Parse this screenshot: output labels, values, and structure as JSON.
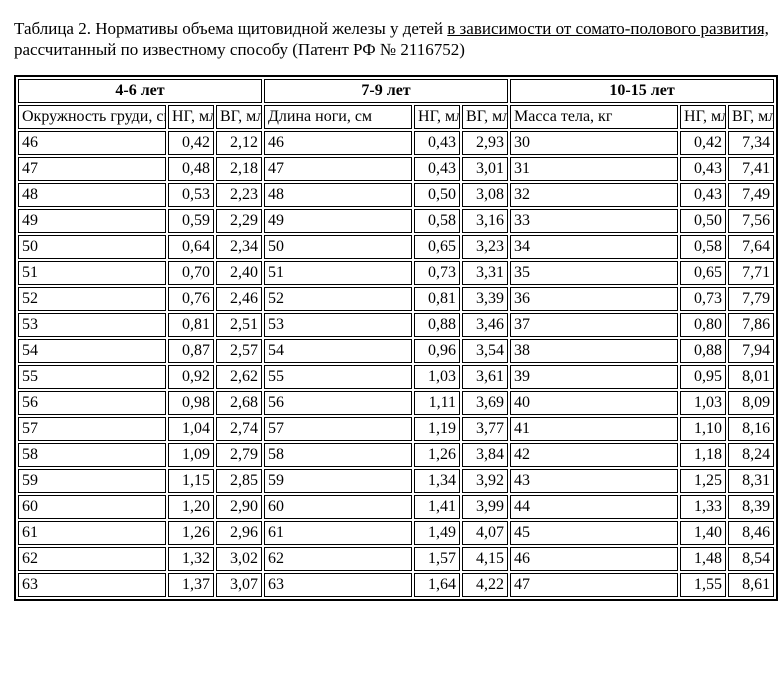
{
  "caption": {
    "prefix": "Таблица 2. Нормативы объема щитовидной железы у детей ",
    "underlined": "в зависимости от сомато-полового развития,",
    "suffix": "  рассчитанный по известному способу  (Патент  РФ  № 2116752)"
  },
  "table": {
    "type": "table",
    "background_color": "#ffffff",
    "border_color": "#000000",
    "text_color": "#000000",
    "font_family": "Times New Roman",
    "header_fontsize": 17,
    "body_fontsize": 16,
    "age_groups": [
      "4-6 лет",
      "7-9 лет",
      "10-15 лет"
    ],
    "column_headers": {
      "group1": {
        "param": "Окружность груди, см",
        "ng": "НГ, мл",
        "vg": "ВГ, мл"
      },
      "group2": {
        "param": "Длина ноги, см",
        "ng": "НГ, мл",
        "vg": "ВГ, мл"
      },
      "group3": {
        "param": "Масса тела, кг",
        "ng": "НГ, мл",
        "vg": "ВГ, мл"
      }
    },
    "rows": [
      {
        "g1": [
          "46",
          "0,42",
          "2,12"
        ],
        "g2": [
          "46",
          "0,43",
          "2,93"
        ],
        "g3": [
          "30",
          "0,42",
          "7,34"
        ]
      },
      {
        "g1": [
          "47",
          "0,48",
          "2,18"
        ],
        "g2": [
          "47",
          "0,43",
          "3,01"
        ],
        "g3": [
          "31",
          "0,43",
          "7,41"
        ]
      },
      {
        "g1": [
          "48",
          "0,53",
          "2,23"
        ],
        "g2": [
          "48",
          "0,50",
          "3,08"
        ],
        "g3": [
          "32",
          "0,43",
          "7,49"
        ]
      },
      {
        "g1": [
          "49",
          "0,59",
          "2,29"
        ],
        "g2": [
          "49",
          "0,58",
          "3,16"
        ],
        "g3": [
          "33",
          "0,50",
          "7,56"
        ]
      },
      {
        "g1": [
          "50",
          "0,64",
          "2,34"
        ],
        "g2": [
          "50",
          "0,65",
          "3,23"
        ],
        "g3": [
          "34",
          "0,58",
          "7,64"
        ]
      },
      {
        "g1": [
          "51",
          "0,70",
          "2,40"
        ],
        "g2": [
          "51",
          "0,73",
          "3,31"
        ],
        "g3": [
          "35",
          "0,65",
          "7,71"
        ]
      },
      {
        "g1": [
          "52",
          "0,76",
          "2,46"
        ],
        "g2": [
          "52",
          "0,81",
          "3,39"
        ],
        "g3": [
          "36",
          "0,73",
          "7,79"
        ]
      },
      {
        "g1": [
          "53",
          "0,81",
          "2,51"
        ],
        "g2": [
          "53",
          "0,88",
          "3,46"
        ],
        "g3": [
          "37",
          "0,80",
          "7,86"
        ]
      },
      {
        "g1": [
          "54",
          "0,87",
          "2,57"
        ],
        "g2": [
          "54",
          "0,96",
          "3,54"
        ],
        "g3": [
          "38",
          "0,88",
          "7,94"
        ]
      },
      {
        "g1": [
          "55",
          "0,92",
          "2,62"
        ],
        "g2": [
          "55",
          "1,03",
          "3,61"
        ],
        "g3": [
          "39",
          "0,95",
          "8,01"
        ]
      },
      {
        "g1": [
          "56",
          "0,98",
          "2,68"
        ],
        "g2": [
          "56",
          "1,11",
          "3,69"
        ],
        "g3": [
          "40",
          "1,03",
          "8,09"
        ]
      },
      {
        "g1": [
          "57",
          "1,04",
          "2,74"
        ],
        "g2": [
          "57",
          "1,19",
          "3,77"
        ],
        "g3": [
          "41",
          "1,10",
          "8,16"
        ]
      },
      {
        "g1": [
          "58",
          "1,09",
          "2,79"
        ],
        "g2": [
          "58",
          "1,26",
          "3,84"
        ],
        "g3": [
          "42",
          "1,18",
          "8,24"
        ]
      },
      {
        "g1": [
          "59",
          "1,15",
          "2,85"
        ],
        "g2": [
          "59",
          "1,34",
          "3,92"
        ],
        "g3": [
          "43",
          "1,25",
          "8,31"
        ]
      },
      {
        "g1": [
          "60",
          "1,20",
          "2,90"
        ],
        "g2": [
          "60",
          "1,41",
          "3,99"
        ],
        "g3": [
          "44",
          "1,33",
          "8,39"
        ]
      },
      {
        "g1": [
          "61",
          "1,26",
          "2,96"
        ],
        "g2": [
          "61",
          "1,49",
          "4,07"
        ],
        "g3": [
          "45",
          "1,40",
          "8,46"
        ]
      },
      {
        "g1": [
          "62",
          "1,32",
          "3,02"
        ],
        "g2": [
          "62",
          "1,57",
          "4,15"
        ],
        "g3": [
          "46",
          "1,48",
          "8,54"
        ]
      },
      {
        "g1": [
          "63",
          "1,37",
          "3,07"
        ],
        "g2": [
          "63",
          "1,64",
          "4,22"
        ],
        "g3": [
          "47",
          "1,55",
          "8,61"
        ]
      }
    ]
  }
}
